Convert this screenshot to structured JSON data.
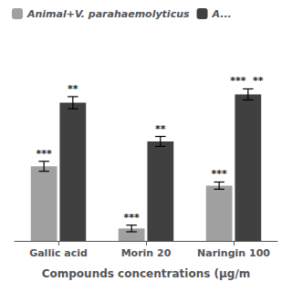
{
  "chart_data": {
    "type": "bar",
    "categories": [
      "Gallic acid",
      "Morin 20",
      "Naringin 100"
    ],
    "series": [
      {
        "name": "Animal+V. parahaemolyticus",
        "color": "#a0a0a0",
        "values": [
          0.27,
          0.045,
          0.2
        ],
        "errors": [
          0.018,
          0.012,
          0.013
        ],
        "annotations": [
          [
            "***"
          ],
          [
            "***"
          ],
          [
            "***"
          ]
        ]
      },
      {
        "name": "A...",
        "color": "#404040",
        "values": [
          0.5,
          0.36,
          0.53
        ],
        "errors": [
          0.022,
          0.018,
          0.02
        ],
        "annotations": [
          [
            "**"
          ],
          [
            "**"
          ],
          [
            "***",
            "**"
          ]
        ]
      }
    ],
    "xlabel": "Compounds concentrations (μg/m",
    "ylim": [
      0,
      0.7
    ],
    "tick_labels": "x",
    "grid": false,
    "legend": "upper left"
  }
}
